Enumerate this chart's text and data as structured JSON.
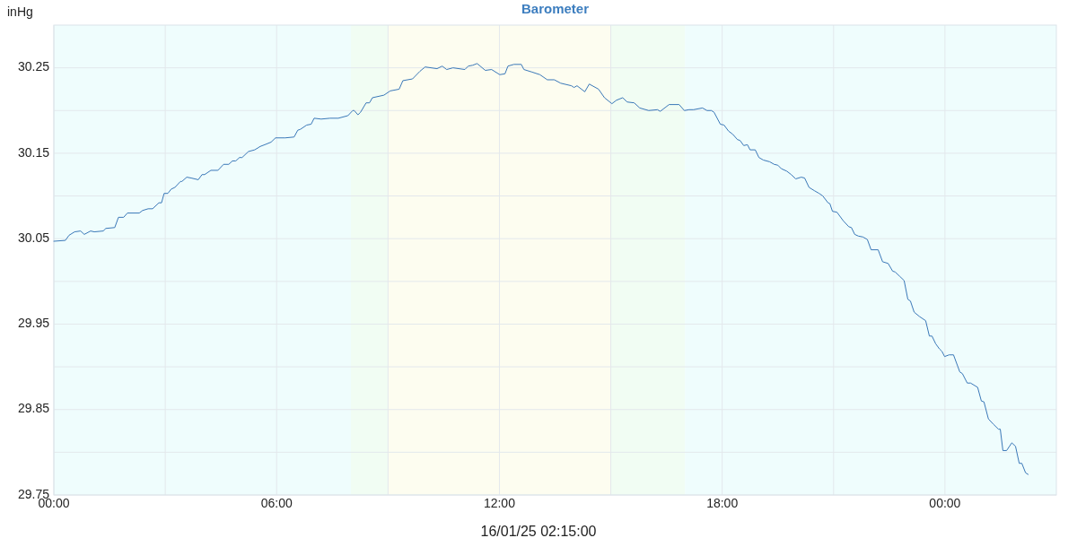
{
  "chart_data": {
    "type": "line",
    "title": "Barometer",
    "ylabel": "inHg",
    "xlabel": "16/01/25 02:15:00",
    "xlim": [
      0,
      27
    ],
    "xticks": [
      {
        "value": 0,
        "label": "00:00"
      },
      {
        "value": 3,
        "label": null
      },
      {
        "value": 6,
        "label": "06:00"
      },
      {
        "value": 9,
        "label": null
      },
      {
        "value": 12,
        "label": "12:00"
      },
      {
        "value": 15,
        "label": null
      },
      {
        "value": 18,
        "label": "18:00"
      },
      {
        "value": 21,
        "label": null
      },
      {
        "value": 24,
        "label": "00:00"
      }
    ],
    "ylim": [
      29.75,
      30.3
    ],
    "yticks": [
      29.75,
      {
        "value": 29.8,
        "label": null
      },
      29.85,
      {
        "value": 29.9,
        "label": null
      },
      29.95,
      {
        "value": 30.0,
        "label": null
      },
      30.05,
      {
        "value": 30.1,
        "label": null
      },
      30.15,
      {
        "value": 30.2,
        "label": null
      },
      30.25
    ],
    "grid": true,
    "marker": "none",
    "line_style": "solid",
    "bands": [
      {
        "axis": "x",
        "from": 0,
        "to": 8,
        "color": "#effdfd"
      },
      {
        "axis": "x",
        "from": 8,
        "to": 9,
        "color": "#f1fdf3"
      },
      {
        "axis": "x",
        "from": 9,
        "to": 15,
        "color": "#fdfdf0"
      },
      {
        "axis": "x",
        "from": 15,
        "to": 17,
        "color": "#f1fdf3"
      },
      {
        "axis": "x",
        "from": 17,
        "to": 27,
        "color": "#effdfd"
      }
    ],
    "series": [
      {
        "color": "#3a78b8",
        "x": [
          0,
          0.31,
          0.41,
          0.56,
          0.72,
          0.82,
          0.99,
          1.09,
          1.33,
          1.4,
          1.64,
          1.74,
          1.88,
          1.98,
          2.3,
          2.39,
          2.54,
          2.66,
          2.83,
          2.9,
          2.97,
          3.07,
          3.16,
          3.26,
          3.41,
          3.45,
          3.58,
          3.7,
          3.89,
          3.99,
          4.06,
          4.23,
          4.42,
          4.57,
          4.71,
          4.81,
          4.9,
          5.0,
          5.07,
          5.24,
          5.41,
          5.56,
          5.68,
          5.85,
          5.97,
          6.23,
          6.47,
          6.57,
          6.64,
          6.81,
          6.93,
          7.01,
          7.2,
          7.44,
          7.66,
          7.92,
          8.05,
          8.09,
          8.19,
          8.26,
          8.41,
          8.5,
          8.58,
          8.89,
          9.06,
          9.3,
          9.4,
          9.66,
          9.86,
          10.0,
          10.32,
          10.46,
          10.58,
          10.75,
          11.07,
          11.16,
          11.28,
          11.4,
          11.62,
          11.79,
          12.01,
          12.15,
          12.23,
          12.39,
          12.59,
          12.66,
          12.88,
          13.09,
          13.29,
          13.48,
          13.65,
          13.94,
          14.01,
          14.09,
          14.3,
          14.42,
          14.67,
          14.83,
          15.03,
          15.15,
          15.32,
          15.44,
          15.63,
          15.78,
          16.02,
          16.26,
          16.33,
          16.57,
          16.84,
          16.98,
          17.11,
          17.23,
          17.47,
          17.59,
          17.71,
          17.78,
          17.95,
          18.05,
          18.17,
          18.29,
          18.41,
          18.48,
          18.58,
          18.68,
          18.75,
          18.89,
          18.99,
          19.11,
          19.28,
          19.4,
          19.5,
          19.59,
          19.74,
          19.86,
          19.98,
          20.13,
          20.22,
          20.34,
          20.49,
          20.61,
          20.71,
          20.85,
          20.9,
          20.97,
          21.09,
          21.26,
          21.41,
          21.48,
          21.57,
          21.67,
          21.79,
          21.91,
          22.01,
          22.2,
          22.32,
          22.47,
          22.59,
          22.66,
          22.78,
          22.9,
          23.0,
          23.07,
          23.17,
          23.31,
          23.48,
          23.58,
          23.65,
          23.75,
          23.85,
          23.92,
          23.99,
          24.11,
          24.23,
          24.4,
          24.47,
          24.6,
          24.69,
          24.88,
          24.98,
          25.05,
          25.17,
          25.3,
          25.44,
          25.49,
          25.56,
          25.66,
          25.8,
          25.9,
          26.0,
          26.07,
          26.17,
          26.24
        ],
        "values": [
          30.047,
          30.048,
          30.054,
          30.058,
          30.059,
          30.055,
          30.059,
          30.058,
          30.059,
          30.062,
          30.063,
          30.075,
          30.075,
          30.08,
          30.08,
          30.083,
          30.085,
          30.085,
          30.092,
          30.092,
          30.103,
          30.103,
          30.108,
          30.11,
          30.117,
          30.117,
          30.122,
          30.121,
          30.119,
          30.125,
          30.125,
          30.13,
          30.13,
          30.137,
          30.137,
          30.141,
          30.141,
          30.145,
          30.145,
          30.152,
          30.154,
          30.158,
          30.16,
          30.163,
          30.168,
          30.168,
          30.169,
          30.177,
          30.178,
          30.183,
          30.184,
          30.191,
          30.19,
          30.191,
          30.191,
          30.194,
          30.2,
          30.2,
          30.195,
          30.198,
          30.209,
          30.209,
          30.215,
          30.218,
          30.223,
          30.225,
          30.235,
          30.237,
          30.246,
          30.251,
          30.249,
          30.252,
          30.248,
          30.25,
          30.248,
          30.252,
          30.253,
          30.255,
          30.247,
          30.248,
          30.242,
          30.243,
          30.252,
          30.254,
          30.254,
          30.248,
          30.245,
          30.242,
          30.236,
          30.236,
          30.232,
          30.229,
          30.227,
          30.229,
          30.222,
          30.231,
          30.225,
          30.215,
          30.208,
          30.212,
          30.215,
          30.21,
          30.209,
          30.203,
          30.2,
          30.201,
          30.199,
          30.207,
          30.207,
          30.2,
          30.201,
          30.201,
          30.203,
          30.2,
          30.2,
          30.198,
          30.184,
          30.183,
          30.176,
          30.172,
          30.166,
          30.165,
          30.159,
          30.16,
          30.154,
          30.154,
          30.145,
          30.142,
          30.14,
          30.137,
          30.136,
          30.132,
          30.129,
          30.125,
          30.12,
          30.122,
          30.121,
          30.11,
          30.106,
          30.103,
          30.1,
          30.092,
          30.091,
          30.082,
          30.081,
          30.071,
          30.064,
          30.063,
          30.055,
          30.053,
          30.052,
          30.049,
          30.037,
          30.037,
          30.023,
          30.021,
          30.012,
          30.011,
          30.006,
          30.001,
          29.979,
          29.977,
          29.964,
          29.959,
          29.954,
          29.936,
          29.936,
          29.927,
          29.921,
          29.918,
          29.912,
          29.914,
          29.914,
          29.894,
          29.892,
          29.881,
          29.881,
          29.876,
          29.86,
          29.859,
          29.839,
          29.833,
          29.827,
          29.827,
          29.802,
          29.802,
          29.811,
          29.807,
          29.787,
          29.787,
          29.776,
          29.774
        ]
      }
    ]
  }
}
